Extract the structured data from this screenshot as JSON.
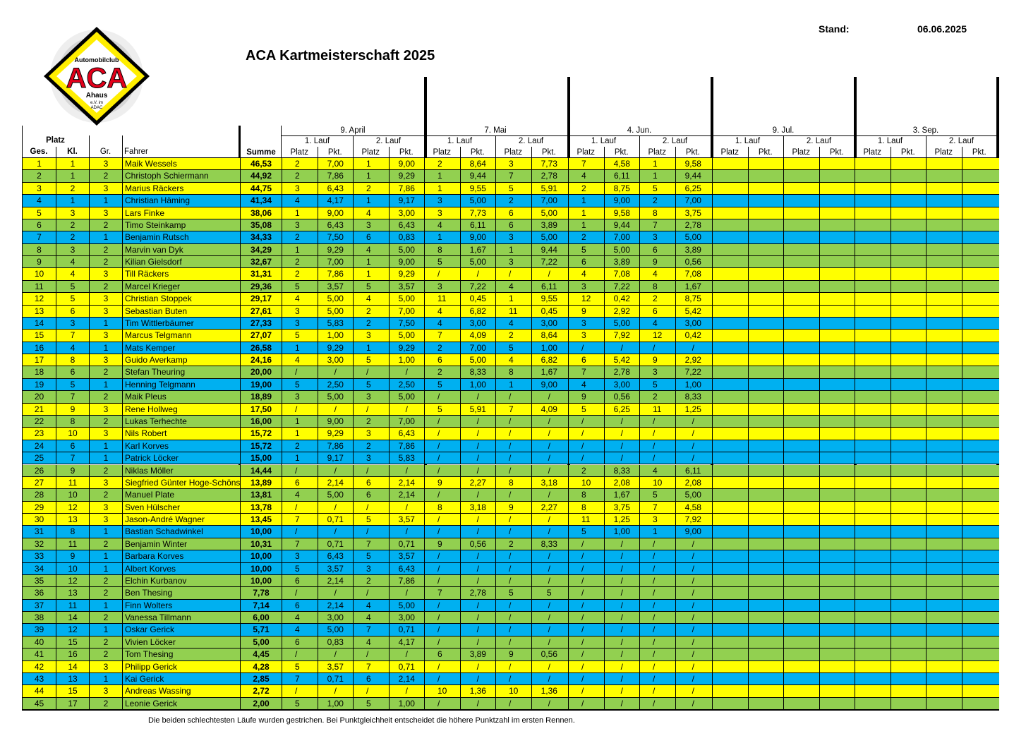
{
  "logo": {
    "text_top": "Automobilclub",
    "text_main": "ACA",
    "text_city": "Ahaus",
    "text_sub1": "e.V. im",
    "text_sub2": "ADAC"
  },
  "title": "ACA Kartmeisterschaft 2025",
  "stand_label": "Stand:",
  "stand_date": "06.06.2025",
  "header": {
    "platz": "Platz",
    "ges": "Ges.",
    "kl": "Kl.",
    "gr": "Gr.",
    "fahrer": "Fahrer",
    "summe": "Summe",
    "lauf1": "1. Lauf",
    "lauf2": "2. Lauf",
    "sub_platz": "Platz",
    "sub_pkt": "Pkt.",
    "events": [
      "9. April",
      "7. Mai",
      "4. Jun.",
      "9. Jul.",
      "3. Sep."
    ]
  },
  "colors": {
    "yellow": "#ffff00",
    "green": "#92d050",
    "blue": "#00b0f0"
  },
  "rows": [
    {
      "ges": "1",
      "kl": "1",
      "gr": "3",
      "name": "Maik Wessels",
      "sum": "46,53",
      "r": [
        "2",
        "7,00",
        "1",
        "9,00",
        "2",
        "8,64",
        "3",
        "7,73",
        "7",
        "4,58",
        "1",
        "9,58"
      ]
    },
    {
      "ges": "2",
      "kl": "1",
      "gr": "2",
      "name": "Christoph Schiermann",
      "sum": "44,92",
      "r": [
        "2",
        "7,86",
        "1",
        "9,29",
        "1",
        "9,44",
        "7",
        "2,78",
        "4",
        "6,11",
        "1",
        "9,44"
      ]
    },
    {
      "ges": "3",
      "kl": "2",
      "gr": "3",
      "name": "Marius Räckers",
      "sum": "44,75",
      "r": [
        "3",
        "6,43",
        "2",
        "7,86",
        "1",
        "9,55",
        "5",
        "5,91",
        "2",
        "8,75",
        "5",
        "6,25"
      ]
    },
    {
      "ges": "4",
      "kl": "1",
      "gr": "1",
      "name": "Christian Häming",
      "sum": "41,34",
      "r": [
        "4",
        "4,17",
        "1",
        "9,17",
        "3",
        "5,00",
        "2",
        "7,00",
        "1",
        "9,00",
        "2",
        "7,00"
      ]
    },
    {
      "ges": "5",
      "kl": "3",
      "gr": "3",
      "name": "Lars Finke",
      "sum": "38,06",
      "r": [
        "1",
        "9,00",
        "4",
        "3,00",
        "3",
        "7,73",
        "6",
        "5,00",
        "1",
        "9,58",
        "8",
        "3,75"
      ]
    },
    {
      "ges": "6",
      "kl": "2",
      "gr": "2",
      "name": "Timo Steinkamp",
      "sum": "35,08",
      "r": [
        "3",
        "6,43",
        "3",
        "6,43",
        "4",
        "6,11",
        "6",
        "3,89",
        "1",
        "9,44",
        "7",
        "2,78"
      ]
    },
    {
      "ges": "7",
      "kl": "2",
      "gr": "1",
      "name": "Benjamin Rutsch",
      "sum": "34,33",
      "r": [
        "2",
        "7,50",
        "6",
        "0,83",
        "1",
        "9,00",
        "3",
        "5,00",
        "2",
        "7,00",
        "3",
        "5,00"
      ]
    },
    {
      "ges": "8",
      "kl": "3",
      "gr": "2",
      "name": "Marvin van Dyk",
      "sum": "34,29",
      "r": [
        "1",
        "9,29",
        "4",
        "5,00",
        "8",
        "1,67",
        "1",
        "9,44",
        "5",
        "5,00",
        "6",
        "3,89"
      ]
    },
    {
      "ges": "9",
      "kl": "4",
      "gr": "2",
      "name": "Kilian Gielsdorf",
      "sum": "32,67",
      "r": [
        "2",
        "7,00",
        "1",
        "9,00",
        "5",
        "5,00",
        "3",
        "7,22",
        "6",
        "3,89",
        "9",
        "0,56"
      ]
    },
    {
      "ges": "10",
      "kl": "4",
      "gr": "3",
      "name": "Till Räckers",
      "sum": "31,31",
      "r": [
        "2",
        "7,86",
        "1",
        "9,29",
        "/",
        "/",
        "/",
        "/",
        "4",
        "7,08",
        "4",
        "7,08"
      ]
    },
    {
      "ges": "11",
      "kl": "5",
      "gr": "2",
      "name": "Marcel Krieger",
      "sum": "29,36",
      "r": [
        "5",
        "3,57",
        "5",
        "3,57",
        "3",
        "7,22",
        "4",
        "6,11",
        "3",
        "7,22",
        "8",
        "1,67"
      ]
    },
    {
      "ges": "12",
      "kl": "5",
      "gr": "3",
      "name": "Christian Stoppek",
      "sum": "29,17",
      "r": [
        "4",
        "5,00",
        "4",
        "5,00",
        "11",
        "0,45",
        "1",
        "9,55",
        "12",
        "0,42",
        "2",
        "8,75"
      ]
    },
    {
      "ges": "13",
      "kl": "6",
      "gr": "3",
      "name": "Sebastian Buten",
      "sum": "27,61",
      "r": [
        "3",
        "5,00",
        "2",
        "7,00",
        "4",
        "6,82",
        "11",
        "0,45",
        "9",
        "2,92",
        "6",
        "5,42"
      ]
    },
    {
      "ges": "14",
      "kl": "3",
      "gr": "1",
      "name": "Tim Wittlerbäumer",
      "sum": "27,33",
      "r": [
        "3",
        "5,83",
        "2",
        "7,50",
        "4",
        "3,00",
        "4",
        "3,00",
        "3",
        "5,00",
        "4",
        "3,00"
      ]
    },
    {
      "ges": "15",
      "kl": "7",
      "gr": "3",
      "name": "Marcus Telgmann",
      "sum": "27,07",
      "r": [
        "5",
        "1,00",
        "3",
        "5,00",
        "7",
        "4,09",
        "2",
        "8,64",
        "3",
        "7,92",
        "12",
        "0,42"
      ]
    },
    {
      "ges": "16",
      "kl": "4",
      "gr": "1",
      "name": "Mats Kemper",
      "sum": "26,58",
      "r": [
        "1",
        "9,29",
        "1",
        "9,29",
        "2",
        "7,00",
        "5",
        "1,00",
        "/",
        "/",
        "/",
        "/"
      ]
    },
    {
      "ges": "17",
      "kl": "8",
      "gr": "3",
      "name": "Guido Averkamp",
      "sum": "24,16",
      "r": [
        "4",
        "3,00",
        "5",
        "1,00",
        "6",
        "5,00",
        "4",
        "6,82",
        "6",
        "5,42",
        "9",
        "2,92"
      ]
    },
    {
      "ges": "18",
      "kl": "6",
      "gr": "2",
      "name": "Stefan Theuring",
      "sum": "20,00",
      "r": [
        "/",
        "/",
        "/",
        "/",
        "2",
        "8,33",
        "8",
        "1,67",
        "7",
        "2,78",
        "3",
        "7,22"
      ]
    },
    {
      "ges": "19",
      "kl": "5",
      "gr": "1",
      "name": "Henning Telgmann",
      "sum": "19,00",
      "r": [
        "5",
        "2,50",
        "5",
        "2,50",
        "5",
        "1,00",
        "1",
        "9,00",
        "4",
        "3,00",
        "5",
        "1,00"
      ]
    },
    {
      "ges": "20",
      "kl": "7",
      "gr": "2",
      "name": "Maik Pleus",
      "sum": "18,89",
      "r": [
        "3",
        "5,00",
        "3",
        "5,00",
        "/",
        "/",
        "/",
        "/",
        "9",
        "0,56",
        "2",
        "8,33"
      ]
    },
    {
      "ges": "21",
      "kl": "9",
      "gr": "3",
      "name": "Rene Hollweg",
      "sum": "17,50",
      "r": [
        "/",
        "/",
        "/",
        "/",
        "5",
        "5,91",
        "7",
        "4,09",
        "5",
        "6,25",
        "11",
        "1,25"
      ]
    },
    {
      "ges": "22",
      "kl": "8",
      "gr": "2",
      "name": "Lukas Terhechte",
      "sum": "16,00",
      "r": [
        "1",
        "9,00",
        "2",
        "7,00",
        "/",
        "/",
        "/",
        "/",
        "/",
        "/",
        "/",
        "/"
      ]
    },
    {
      "ges": "23",
      "kl": "10",
      "gr": "3",
      "name": "Nils Robert",
      "sum": "15,72",
      "r": [
        "1",
        "9,29",
        "3",
        "6,43",
        "/",
        "/",
        "/",
        "/",
        "/",
        "/",
        "/",
        "/"
      ]
    },
    {
      "ges": "24",
      "kl": "6",
      "gr": "1",
      "name": "Karl Korves",
      "sum": "15,72",
      "r": [
        "2",
        "7,86",
        "2",
        "7,86",
        "/",
        "/",
        "/",
        "/",
        "/",
        "/",
        "/",
        "/"
      ]
    },
    {
      "ges": "25",
      "kl": "7",
      "gr": "1",
      "name": "Patrick Löcker",
      "sum": "15,00",
      "r": [
        "1",
        "9,17",
        "3",
        "5,83",
        "/",
        "/",
        "/",
        "/",
        "/",
        "/",
        "/",
        "/"
      ]
    },
    {
      "ges": "26",
      "kl": "9",
      "gr": "2",
      "name": "Niklas Möller",
      "sum": "14,44",
      "r": [
        "/",
        "/",
        "/",
        "/",
        "/",
        "/",
        "/",
        "/",
        "2",
        "8,33",
        "4",
        "6,11"
      ]
    },
    {
      "ges": "27",
      "kl": "11",
      "gr": "3",
      "name": "Siegfried Günter Hoge-Schöns",
      "sum": "13,89",
      "r": [
        "6",
        "2,14",
        "6",
        "2,14",
        "9",
        "2,27",
        "8",
        "3,18",
        "10",
        "2,08",
        "10",
        "2,08"
      ]
    },
    {
      "ges": "28",
      "kl": "10",
      "gr": "2",
      "name": "Manuel Plate",
      "sum": "13,81",
      "r": [
        "4",
        "5,00",
        "6",
        "2,14",
        "/",
        "/",
        "/",
        "/",
        "8",
        "1,67",
        "5",
        "5,00"
      ]
    },
    {
      "ges": "29",
      "kl": "12",
      "gr": "3",
      "name": "Sven Hülscher",
      "sum": "13,78",
      "r": [
        "/",
        "/",
        "/",
        "/",
        "8",
        "3,18",
        "9",
        "2,27",
        "8",
        "3,75",
        "7",
        "4,58"
      ]
    },
    {
      "ges": "30",
      "kl": "13",
      "gr": "3",
      "name": "Jason-André Wagner",
      "sum": "13,45",
      "r": [
        "7",
        "0,71",
        "5",
        "3,57",
        "/",
        "/",
        "/",
        "/",
        "11",
        "1,25",
        "3",
        "7,92"
      ]
    },
    {
      "ges": "31",
      "kl": "8",
      "gr": "1",
      "name": "Bastian Schadwinkel",
      "sum": "10,00",
      "r": [
        "/",
        "/",
        "/",
        "/",
        "/",
        "/",
        "/",
        "/",
        "5",
        "1,00",
        "1",
        "9,00"
      ]
    },
    {
      "ges": "32",
      "kl": "11",
      "gr": "2",
      "name": "Benjamin Winter",
      "sum": "10,31",
      "r": [
        "7",
        "0,71",
        "7",
        "0,71",
        "9",
        "0,56",
        "2",
        "8,33",
        "/",
        "/",
        "/",
        "/"
      ]
    },
    {
      "ges": "33",
      "kl": "9",
      "gr": "1",
      "name": "Barbara Korves",
      "sum": "10,00",
      "r": [
        "3",
        "6,43",
        "5",
        "3,57",
        "/",
        "/",
        "/",
        "/",
        "/",
        "/",
        "/",
        "/"
      ]
    },
    {
      "ges": "34",
      "kl": "10",
      "gr": "1",
      "name": "Albert Korves",
      "sum": "10,00",
      "r": [
        "5",
        "3,57",
        "3",
        "6,43",
        "/",
        "/",
        "/",
        "/",
        "/",
        "/",
        "/",
        "/"
      ]
    },
    {
      "ges": "35",
      "kl": "12",
      "gr": "2",
      "name": "Elchin Kurbanov",
      "sum": "10,00",
      "r": [
        "6",
        "2,14",
        "2",
        "7,86",
        "/",
        "/",
        "/",
        "/",
        "/",
        "/",
        "/",
        "/"
      ]
    },
    {
      "ges": "36",
      "kl": "13",
      "gr": "2",
      "name": "Ben Thesing",
      "sum": "7,78",
      "r": [
        "/",
        "/",
        "/",
        "/",
        "7",
        "2,78",
        "5",
        "5",
        "/",
        "/",
        "/",
        "/"
      ]
    },
    {
      "ges": "37",
      "kl": "11",
      "gr": "1",
      "name": "Finn Wolters",
      "sum": "7,14",
      "r": [
        "6",
        "2,14",
        "4",
        "5,00",
        "/",
        "/",
        "/",
        "/",
        "/",
        "/",
        "/",
        "/"
      ]
    },
    {
      "ges": "38",
      "kl": "14",
      "gr": "2",
      "name": "Vanessa Tillmann",
      "sum": "6,00",
      "r": [
        "4",
        "3,00",
        "4",
        "3,00",
        "/",
        "/",
        "/",
        "/",
        "/",
        "/",
        "/",
        "/"
      ]
    },
    {
      "ges": "39",
      "kl": "12",
      "gr": "1",
      "name": "Oskar Gerick",
      "sum": "5,71",
      "r": [
        "4",
        "5,00",
        "7",
        "0,71",
        "/",
        "/",
        "/",
        "/",
        "/",
        "/",
        "/",
        "/"
      ]
    },
    {
      "ges": "40",
      "kl": "15",
      "gr": "2",
      "name": "Vivien Löcker",
      "sum": "5,00",
      "r": [
        "6",
        "0,83",
        "4",
        "4,17",
        "/",
        "/",
        "/",
        "/",
        "/",
        "/",
        "/",
        "/"
      ]
    },
    {
      "ges": "41",
      "kl": "16",
      "gr": "2",
      "name": "Tom Thesing",
      "sum": "4,45",
      "r": [
        "/",
        "/",
        "/",
        "/",
        "6",
        "3,89",
        "9",
        "0,56",
        "/",
        "/",
        "/",
        "/"
      ]
    },
    {
      "ges": "42",
      "kl": "14",
      "gr": "3",
      "name": "Philipp Gerick",
      "sum": "4,28",
      "r": [
        "5",
        "3,57",
        "7",
        "0,71",
        "/",
        "/",
        "/",
        "/",
        "/",
        "/",
        "/",
        "/"
      ]
    },
    {
      "ges": "43",
      "kl": "13",
      "gr": "1",
      "name": "Kai Gerick",
      "sum": "2,85",
      "r": [
        "7",
        "0,71",
        "6",
        "2,14",
        "/",
        "/",
        "/",
        "/",
        "/",
        "/",
        "/",
        "/"
      ]
    },
    {
      "ges": "44",
      "kl": "15",
      "gr": "3",
      "name": "Andreas Wassing",
      "sum": "2,72",
      "r": [
        "/",
        "/",
        "/",
        "/",
        "10",
        "1,36",
        "10",
        "1,36",
        "/",
        "/",
        "/",
        "/"
      ]
    },
    {
      "ges": "45",
      "kl": "17",
      "gr": "2",
      "name": "Leonie Gerick",
      "sum": "2,00",
      "r": [
        "5",
        "1,00",
        "5",
        "1,00",
        "/",
        "/",
        "/",
        "/",
        "/",
        "/",
        "/",
        "/"
      ]
    }
  ],
  "footer": "Die beiden schlechtesten Läufe wurden gestrichen. Bei Punktgleichheit entscheidet die höhere Punktzahl im ersten Rennen."
}
